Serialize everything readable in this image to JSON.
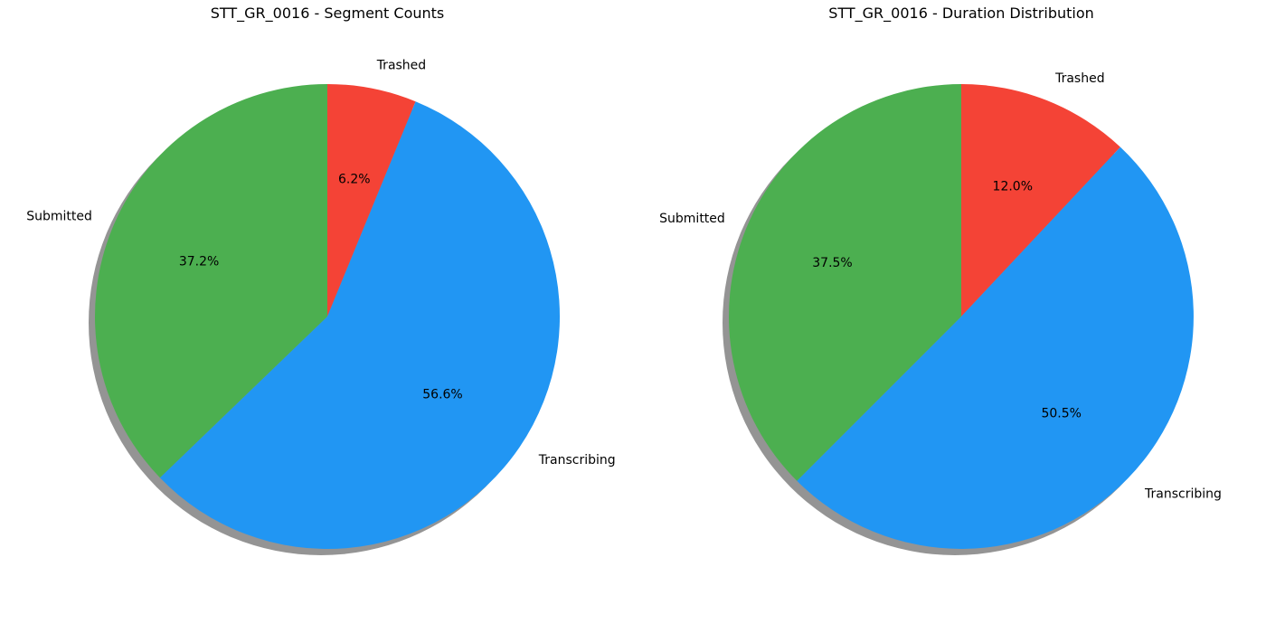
{
  "chart_data": [
    {
      "type": "pie",
      "title": "STT_GR_0016 - Segment Counts",
      "categories": [
        "Trashed",
        "Transcribing",
        "Submitted"
      ],
      "values": [
        6.2,
        56.6,
        37.2
      ],
      "value_labels": [
        "6.2%",
        "56.6%",
        "37.2%"
      ],
      "colors": [
        "#F44336",
        "#2196F3",
        "#4CAF50"
      ],
      "start_angle": "90 degrees, clockwise",
      "shadow": true,
      "legend": "none"
    },
    {
      "type": "pie",
      "title": "STT_GR_0016 - Duration Distribution",
      "categories": [
        "Trashed",
        "Transcribing",
        "Submitted"
      ],
      "values": [
        12.0,
        50.5,
        37.5
      ],
      "value_labels": [
        "12.0%",
        "50.5%",
        "37.5%"
      ],
      "colors": [
        "#F44336",
        "#2196F3",
        "#4CAF50"
      ],
      "start_angle": "90 degrees, clockwise",
      "shadow": true,
      "legend": "none"
    }
  ]
}
